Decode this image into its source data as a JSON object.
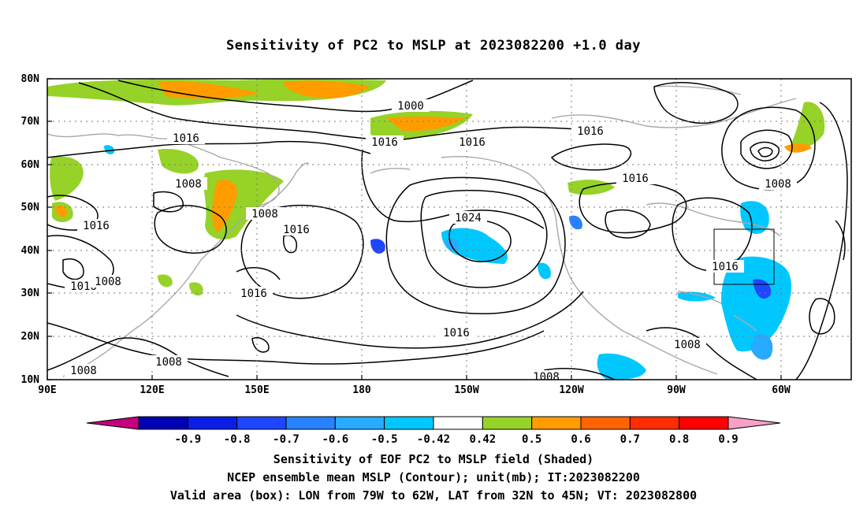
{
  "title": "Sensitivity of PC2 to MSLP at 2023082200 +1.0 day",
  "map": {
    "lat_labels": [
      "80N",
      "70N",
      "60N",
      "50N",
      "40N",
      "30N",
      "20N",
      "10N"
    ],
    "lon_labels": [
      "90E",
      "120E",
      "150E",
      "180",
      "150W",
      "120W",
      "90W",
      "60W"
    ],
    "contour_labels": [
      "1000",
      "1016",
      "1016",
      "1016",
      "1016",
      "1008",
      "1008",
      "1016",
      "1008",
      "1016",
      "1016",
      "1024",
      "1016",
      "1008",
      "1016",
      "1016",
      "1016",
      "1008",
      "1008",
      "1008",
      "1008",
      "1008"
    ],
    "box_label": "Valid area"
  },
  "colorbar": {
    "ticks": [
      "-0.9",
      "-0.8",
      "-0.7",
      "-0.6",
      "-0.5",
      "-0.42",
      "0.42",
      "0.5",
      "0.6",
      "0.7",
      "0.8",
      "0.9"
    ],
    "colors": [
      "#c4007f",
      "#0000b4",
      "#0a1ee6",
      "#1e46ff",
      "#2882ff",
      "#28aaff",
      "#00c8ff",
      "#ffffff",
      "#96d228",
      "#ff9c00",
      "#ff6400",
      "#ff2d00",
      "#ff0000",
      "#f8a0c8"
    ]
  },
  "captions": {
    "line1": "Sensitivity of EOF PC2 to MSLP field (Shaded)",
    "line2": "NCEP ensemble mean MSLP (Contour); unit(mb); IT:2023082200",
    "line3": "Valid area (box): LON from 79W to 62W, LAT from 32N to 45N; VT: 2023082800"
  }
}
